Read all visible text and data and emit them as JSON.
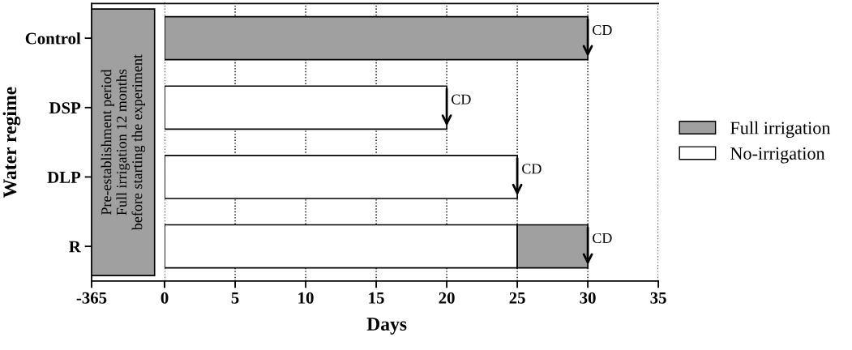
{
  "chart_data": [
    {
      "type": "bar",
      "orientation": "horizontal",
      "categories": [
        "Control",
        "DSP",
        "DLP",
        "R"
      ],
      "ylabel": "Water regime",
      "xlim": [
        -365,
        0
      ],
      "xticks": [
        -365,
        0
      ],
      "bands": [
        {
          "axis": "x",
          "from": -365,
          "to": -50,
          "color": "#a0a0a0",
          "label": "Pre-establishment period\nFull irrigation 12 months\nbefore starting the experiment"
        }
      ]
    },
    {
      "type": "bar",
      "orientation": "horizontal",
      "stacked": true,
      "categories": [
        "Control",
        "DSP",
        "DLP",
        "R"
      ],
      "series": [
        {
          "name": "No-irrigation",
          "color": "#ffffff",
          "values": [
            null,
            20,
            25,
            25
          ]
        },
        {
          "name": "Full irrigation",
          "color": "#a0a0a0",
          "values": [
            30,
            null,
            null,
            5
          ]
        }
      ],
      "xlabel": "Days",
      "xlim": [
        0,
        35
      ],
      "xticks": [
        {
          "value": 0,
          "label": null
        },
        5,
        10,
        15,
        20,
        25,
        30,
        35
      ],
      "tick_labels": "x",
      "grid": "x",
      "legend": "right",
      "annotations": [
        {
          "text": "CD",
          "x": 30,
          "y": "Control"
        },
        {
          "text": "CD",
          "x": 20,
          "y": "DSP"
        },
        {
          "text": "CD",
          "x": 25,
          "y": "DLP"
        },
        {
          "text": "CD",
          "x": 30,
          "y": "R"
        }
      ]
    }
  ]
}
